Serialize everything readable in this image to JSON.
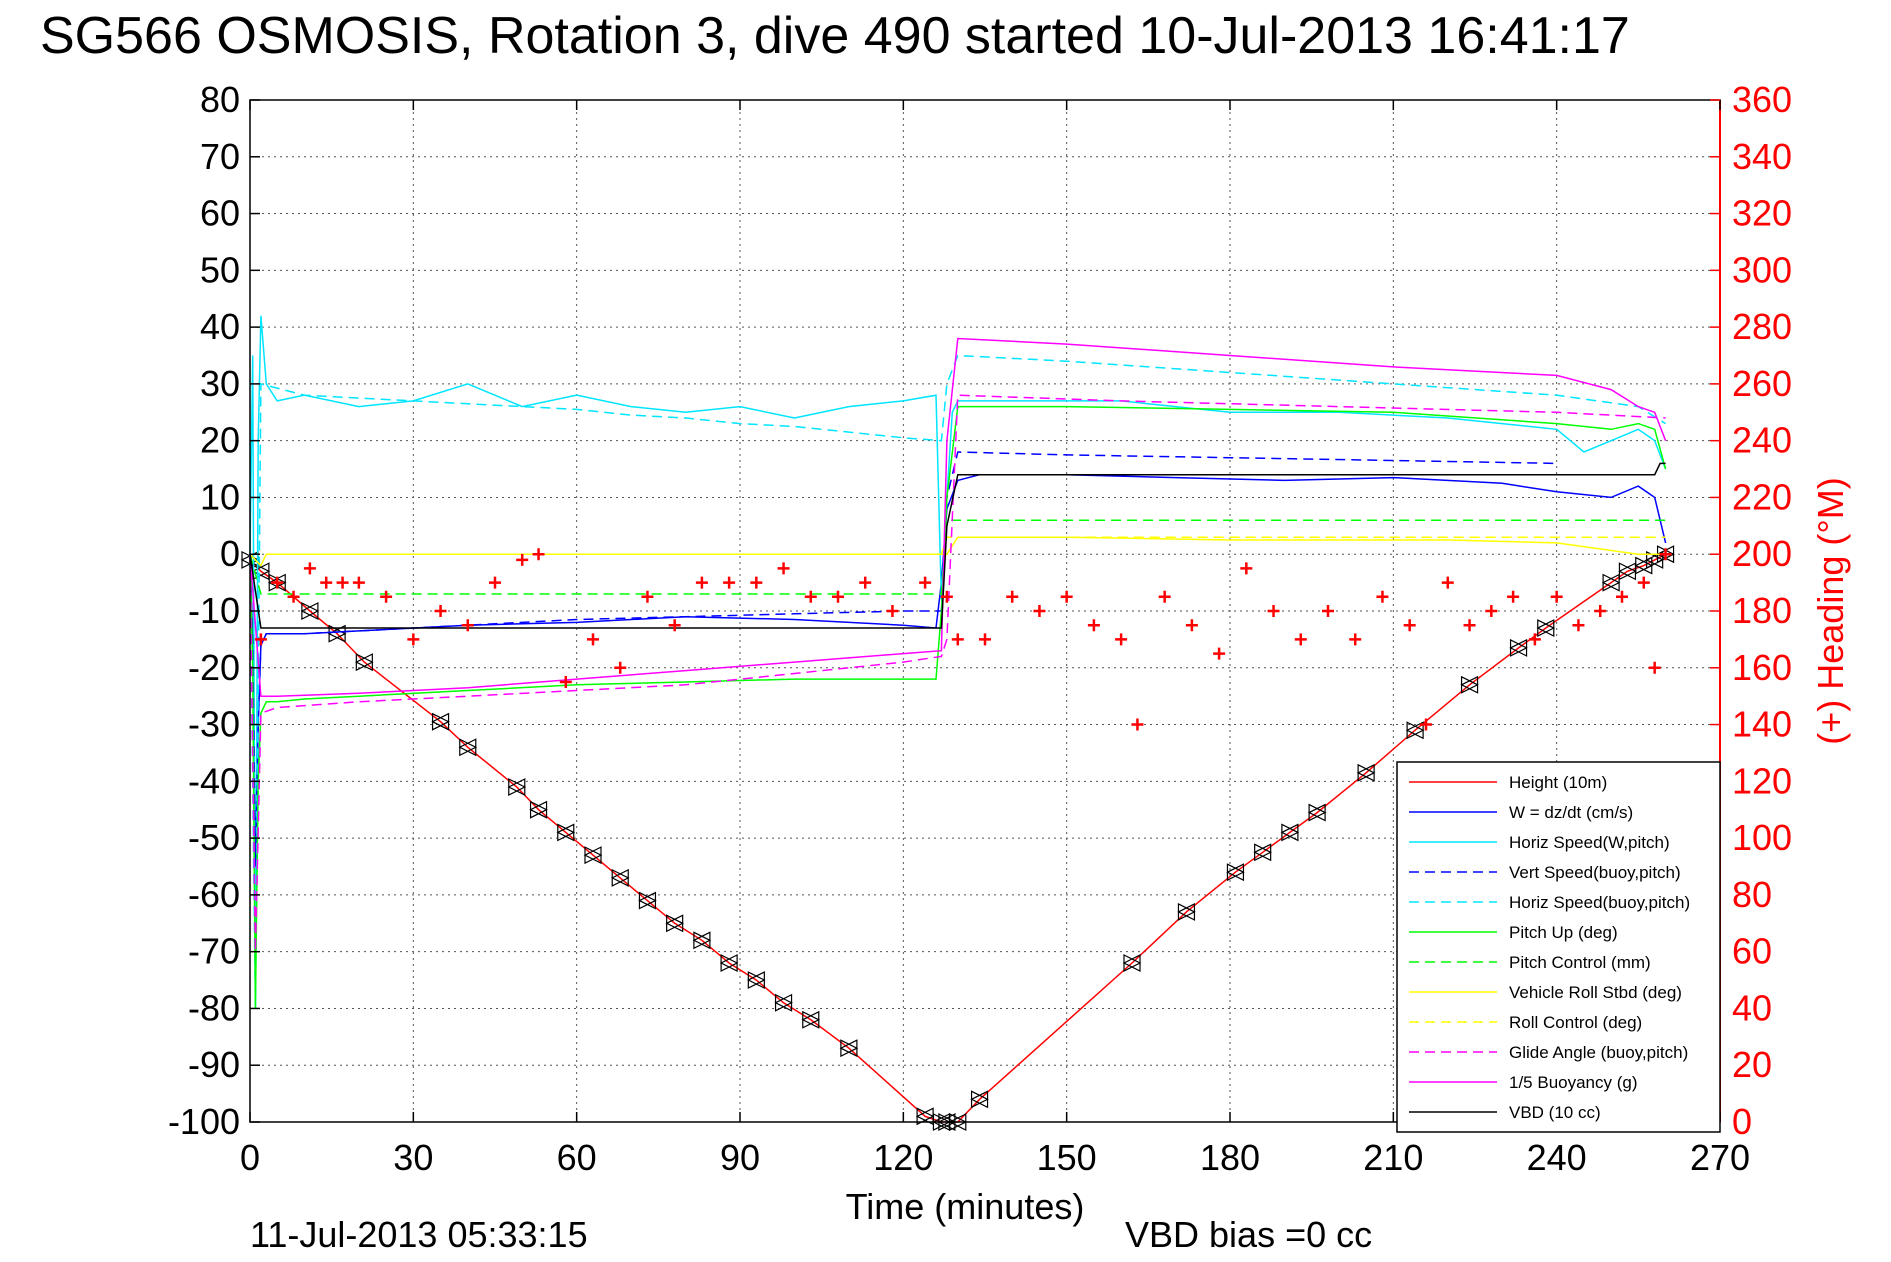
{
  "chart_data": {
    "type": "line",
    "title": "SG566 OSMOSIS, Rotation 3, dive 490 started 10-Jul-2013 16:41:17",
    "xlabel": "Time (minutes)",
    "ylabel_right": "(+) Heading (°M)",
    "footer_left": "11-Jul-2013 05:33:15",
    "footer_right": "VBD bias =0 cc",
    "xlim": [
      0,
      270
    ],
    "ylim": [
      -100,
      80
    ],
    "ylim_right": [
      0,
      360
    ],
    "x_ticks": [
      "0",
      "30",
      "60",
      "90",
      "120",
      "150",
      "180",
      "210",
      "240",
      "270"
    ],
    "y_ticks": [
      "80",
      "70",
      "60",
      "50",
      "40",
      "30",
      "20",
      "10",
      "0",
      "-10",
      "-20",
      "-30",
      "-40",
      "-50",
      "-60",
      "-70",
      "-80",
      "-90",
      "-100"
    ],
    "y_ticks_right": [
      "360",
      "340",
      "320",
      "300",
      "280",
      "260",
      "240",
      "220",
      "200",
      "180",
      "160",
      "140",
      "120",
      "100",
      "80",
      "60",
      "40",
      "20",
      "0"
    ],
    "grid": true,
    "legend_position": "lower-right",
    "series": [
      {
        "name": "Height (10m)",
        "color": "#ff0000",
        "style": "solid",
        "x": [
          0,
          2,
          5,
          11,
          16,
          21,
          35,
          40,
          49,
          53,
          58,
          63,
          68,
          73,
          78,
          83,
          88,
          93,
          98,
          103,
          110,
          124,
          127,
          128,
          130,
          134,
          162,
          172,
          181,
          186,
          191,
          196,
          205,
          214,
          224,
          233,
          238,
          250,
          253,
          256,
          258,
          260
        ],
        "y": [
          -1,
          -3,
          -5,
          -10,
          -14,
          -19,
          -29.5,
          -34,
          -41,
          -45,
          -49,
          -53,
          -57,
          -61,
          -65,
          -68,
          -72,
          -75,
          -79,
          -82,
          -87,
          -99,
          -100,
          -100,
          -100,
          -96,
          -72,
          -63,
          -56,
          -52.5,
          -49,
          -45.5,
          -38.5,
          -31,
          -23,
          -16.5,
          -13,
          -5,
          -3,
          -2,
          -1,
          0
        ]
      },
      {
        "name": "W = dz/dt (cm/s)",
        "color": "#0000ff",
        "style": "solid",
        "x": [
          0,
          0.5,
          1,
          1.5,
          2,
          3,
          5,
          10,
          20,
          40,
          60,
          80,
          100,
          120,
          126,
          127,
          128,
          130,
          134,
          150,
          170,
          190,
          210,
          230,
          240,
          250,
          255,
          258,
          260
        ],
        "y": [
          0,
          -15,
          -55,
          -30,
          -16,
          -14,
          -14,
          -14,
          -13.5,
          -12.5,
          -12,
          -11,
          -11.5,
          -12.5,
          -13,
          -5,
          8,
          13,
          14,
          14,
          13.5,
          13,
          13.5,
          12.5,
          11,
          10,
          12,
          10,
          2
        ]
      },
      {
        "name": "Horiz Speed(W,pitch)",
        "color": "#00e5ff",
        "style": "solid",
        "x": [
          0,
          0.5,
          1,
          1.5,
          2,
          3,
          5,
          10,
          20,
          30,
          40,
          50,
          60,
          70,
          80,
          90,
          100,
          110,
          120,
          126,
          127,
          128,
          129,
          130,
          140,
          150,
          160,
          180,
          200,
          220,
          240,
          245,
          250,
          255,
          258,
          260
        ],
        "y": [
          0,
          35,
          -80,
          20,
          42,
          30,
          27,
          28,
          26,
          27,
          30,
          26,
          28,
          26,
          25,
          26,
          24,
          26,
          27,
          28,
          -8,
          10,
          25,
          27,
          27,
          27,
          27,
          25,
          25,
          24,
          22,
          18,
          20,
          22,
          20,
          15
        ]
      },
      {
        "name": "Vert Speed(buoy,pitch)",
        "color": "#0000ff",
        "style": "dashed",
        "x": [
          0,
          0.5,
          1,
          1.5,
          2,
          3,
          10,
          20,
          40,
          60,
          80,
          100,
          120,
          127,
          128,
          130,
          150,
          180,
          210,
          240
        ],
        "y": [
          0,
          -15,
          -55,
          -30,
          -16,
          -14,
          -14,
          -13.5,
          -12.5,
          -11.5,
          -11,
          -10.5,
          -10,
          -10,
          10,
          18,
          17.5,
          17,
          16.5,
          16
        ]
      },
      {
        "name": "Horiz Speed(buoy,pitch)",
        "color": "#00e5ff",
        "style": "dashed",
        "x": [
          0,
          1,
          2,
          10,
          20,
          30,
          40,
          50,
          60,
          70,
          80,
          90,
          100,
          110,
          120,
          127,
          128,
          130,
          150,
          180,
          210,
          240,
          255,
          260
        ],
        "y": [
          0,
          -80,
          30,
          28,
          27.5,
          27,
          26.5,
          26,
          25.5,
          24.5,
          24,
          23,
          22.5,
          21.5,
          20.5,
          20,
          30,
          35,
          34,
          32,
          30,
          28,
          26,
          23
        ]
      },
      {
        "name": "Pitch Up (deg)",
        "color": "#00ff00",
        "style": "solid",
        "x": [
          0,
          0.5,
          1,
          1.5,
          2,
          3,
          5,
          10,
          20,
          40,
          60,
          80,
          100,
          120,
          126,
          127,
          128,
          130,
          134,
          150,
          180,
          210,
          240,
          250,
          255,
          258,
          260
        ],
        "y": [
          0,
          -20,
          -80,
          -40,
          -28,
          -26,
          -26,
          -25.5,
          -25,
          -24,
          -23,
          -22.5,
          -22,
          -22,
          -22,
          -10,
          10,
          26,
          26,
          26,
          25.5,
          25,
          23,
          22,
          23,
          22,
          15
        ]
      },
      {
        "name": "Pitch Control (mm)",
        "color": "#00ff00",
        "style": "dashed",
        "x": [
          0,
          2,
          20,
          60,
          100,
          127,
          128,
          130,
          150,
          200,
          250,
          260
        ],
        "y": [
          0,
          -7,
          -7,
          -7,
          -7,
          -7,
          6,
          6,
          6,
          6,
          6,
          6
        ]
      },
      {
        "name": "Vehicle Roll Stbd (deg)",
        "color": "#ffff00",
        "style": "solid",
        "x": [
          0,
          2,
          3,
          10,
          20,
          40,
          60,
          80,
          100,
          120,
          127,
          128,
          130,
          140,
          150,
          180,
          200,
          220,
          240,
          255,
          260
        ],
        "y": [
          0,
          -2,
          0,
          0,
          0,
          0,
          0,
          0,
          0,
          0,
          0,
          0,
          3,
          3,
          3,
          2.5,
          2.5,
          2.5,
          2,
          0,
          0
        ]
      },
      {
        "name": "Roll Control (deg)",
        "color": "#ffff00",
        "style": "dashed",
        "x": [
          0,
          2,
          20,
          60,
          100,
          127,
          128,
          130,
          170,
          220,
          260
        ],
        "y": [
          0,
          0,
          0,
          0,
          0,
          0,
          3,
          3,
          3,
          3,
          3
        ]
      },
      {
        "name": "Glide Angle (buoy,pitch)",
        "color": "#ff00ff",
        "style": "dashed",
        "x": [
          0,
          1,
          2,
          5,
          20,
          40,
          60,
          80,
          100,
          120,
          127,
          128,
          130,
          160,
          200,
          240,
          260
        ],
        "y": [
          0,
          -70,
          -28,
          -27,
          -26,
          -25,
          -24,
          -23,
          -21,
          -19,
          -18,
          -15,
          28,
          27,
          26,
          25,
          24
        ]
      },
      {
        "name": "1/5 Buoyancy (g)",
        "color": "#ff00ff",
        "style": "solid",
        "x": [
          0,
          2,
          5,
          20,
          40,
          60,
          80,
          100,
          120,
          127,
          128,
          130,
          150,
          180,
          210,
          240,
          250,
          255,
          258,
          260
        ],
        "y": [
          0,
          -25,
          -25,
          -24.5,
          -23.5,
          -22,
          -20.5,
          -19,
          -17.5,
          -17,
          20,
          38,
          37,
          35,
          33,
          31.5,
          29,
          26,
          25,
          20
        ]
      },
      {
        "name": "VBD (10 cc)",
        "color": "#000000",
        "style": "solid",
        "x": [
          0,
          2,
          3,
          10,
          20,
          40,
          60,
          80,
          100,
          120,
          127,
          128,
          130,
          150,
          180,
          210,
          240,
          258,
          259,
          260
        ],
        "y": [
          0,
          -13,
          -13,
          -13,
          -13,
          -13,
          -13,
          -13,
          -13,
          -13,
          -13,
          5,
          14,
          14,
          14,
          14,
          14,
          14,
          16,
          16
        ]
      },
      {
        "name": "Heading",
        "color": "#ff0000",
        "style": "markers",
        "axis": "right",
        "x": [
          2,
          5,
          8,
          11,
          14,
          17,
          20,
          25,
          30,
          35,
          40,
          45,
          50,
          53,
          58,
          63,
          68,
          73,
          78,
          83,
          88,
          93,
          98,
          103,
          108,
          113,
          118,
          124,
          128,
          130,
          135,
          140,
          145,
          150,
          155,
          160,
          163,
          168,
          173,
          178,
          183,
          188,
          193,
          198,
          203,
          208,
          213,
          216,
          220,
          224,
          228,
          232,
          236,
          240,
          244,
          248,
          252,
          256,
          258,
          260
        ],
        "y": [
          170,
          190,
          185,
          195,
          190,
          190,
          190,
          185,
          170,
          180,
          175,
          190,
          198,
          200,
          155,
          170,
          160,
          185,
          175,
          190,
          190,
          190,
          195,
          185,
          185,
          190,
          180,
          190,
          185,
          170,
          170,
          185,
          180,
          185,
          175,
          170,
          140,
          185,
          175,
          165,
          195,
          180,
          170,
          180,
          170,
          185,
          175,
          140,
          190,
          175,
          180,
          185,
          170,
          185,
          175,
          180,
          185,
          190,
          160,
          200
        ]
      }
    ]
  }
}
